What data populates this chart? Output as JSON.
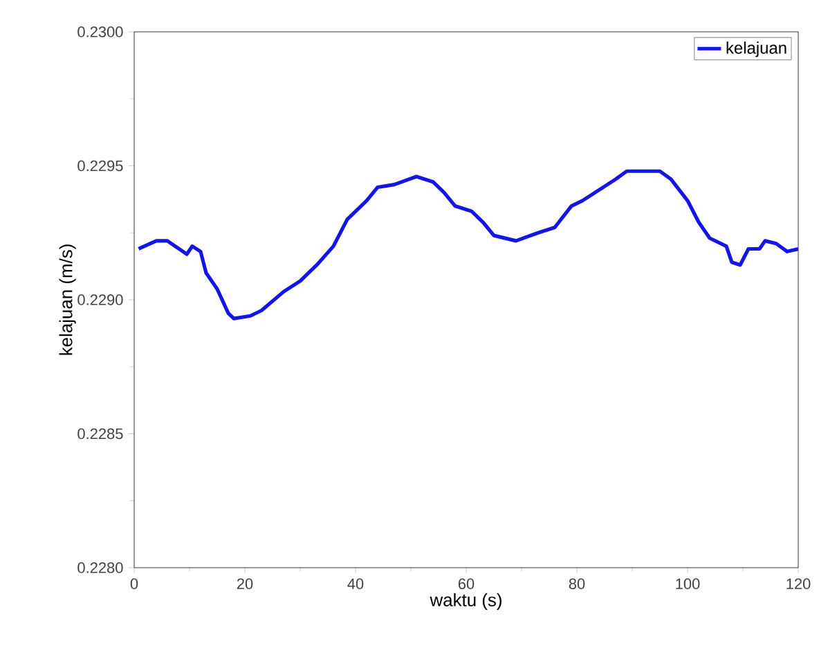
{
  "chart_data": {
    "type": "line",
    "xlabel": "waktu (s)",
    "ylabel": "kelajuan (m/s)",
    "xlim": [
      0,
      120
    ],
    "ylim": [
      0.228,
      0.23
    ],
    "xticks": [
      0,
      20,
      40,
      60,
      80,
      100,
      120
    ],
    "yticks": [
      {
        "value": 0.228,
        "label": "0.2280"
      },
      {
        "value": 0.2285,
        "label": "0.2285"
      },
      {
        "value": 0.229,
        "label": "0.2290"
      },
      {
        "value": 0.2295,
        "label": "0.2295"
      },
      {
        "value": 0.23,
        "label": "0.2300"
      }
    ],
    "grid": false,
    "legend": "top right",
    "marker": "none",
    "line_style": "solid",
    "series": [
      {
        "name": "kelajuan",
        "color": "#1414e6",
        "x": [
          0.8,
          4,
          6,
          9.5,
          10.5,
          12,
          13,
          15,
          17,
          18,
          21,
          23,
          27,
          30,
          33,
          36,
          38.5,
          42,
          44,
          47,
          51,
          54,
          56,
          58,
          61,
          63,
          65,
          69,
          73,
          76,
          79,
          81,
          84,
          87,
          89,
          91,
          95,
          97,
          100,
          102,
          104,
          107,
          108,
          109.5,
          111,
          113,
          114,
          116,
          118,
          120
        ],
        "values": [
          0.22919,
          0.22922,
          0.22922,
          0.22917,
          0.2292,
          0.22918,
          0.2291,
          0.22904,
          0.22895,
          0.22893,
          0.22894,
          0.22896,
          0.22903,
          0.22907,
          0.22913,
          0.2292,
          0.2293,
          0.22937,
          0.22942,
          0.22943,
          0.22946,
          0.22944,
          0.2294,
          0.22935,
          0.22933,
          0.22929,
          0.22924,
          0.22922,
          0.22925,
          0.22927,
          0.22935,
          0.22937,
          0.22941,
          0.22945,
          0.22948,
          0.22948,
          0.22948,
          0.22945,
          0.22937,
          0.22929,
          0.22923,
          0.2292,
          0.22914,
          0.22913,
          0.22919,
          0.22919,
          0.22922,
          0.22921,
          0.22918,
          0.22919
        ]
      }
    ]
  }
}
